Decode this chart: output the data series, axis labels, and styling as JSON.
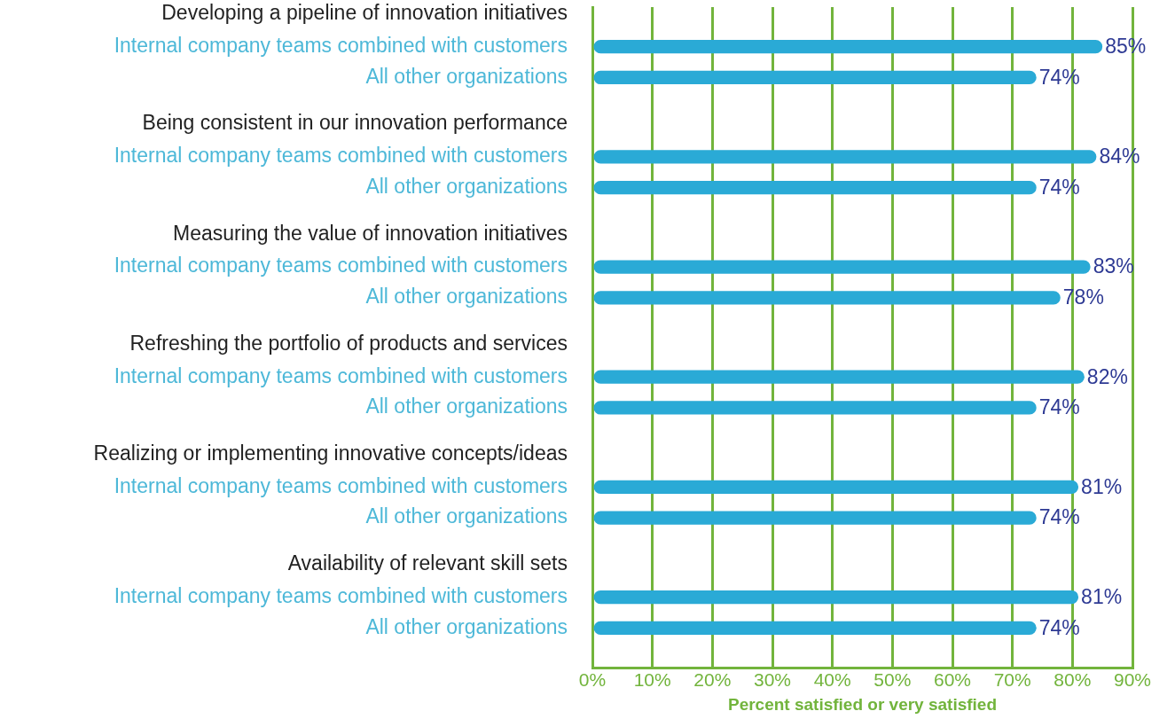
{
  "chart_data": {
    "type": "bar",
    "orientation": "horizontal",
    "xlabel": "Percent satisfied or very satisfied",
    "categories": [
      "Developing a pipeline of innovation initiatives",
      "Being consistent in our innovation performance",
      "Measuring the value of innovation initiatives",
      "Refreshing the portfolio of products and services",
      "Realizing or implementing innovative concepts/ideas",
      "Availability of relevant skill sets"
    ],
    "series": [
      {
        "name": "Internal company teams combined with customers",
        "color": "#2aaad6",
        "values": [
          85,
          84,
          83,
          82,
          81,
          81
        ],
        "value_labels": [
          "85%",
          "84%",
          "83%",
          "82%",
          "81%",
          "81%"
        ]
      },
      {
        "name": "All other organizations",
        "color": "#2aaad6",
        "values": [
          74,
          74,
          78,
          74,
          74,
          74
        ],
        "value_labels": [
          "74%",
          "74%",
          "78%",
          "74%",
          "74%",
          "74%"
        ]
      }
    ],
    "xlim": [
      0,
      90
    ],
    "xticks": [
      {
        "value": 0,
        "label": "0%"
      },
      {
        "value": 10,
        "label": "10%"
      },
      {
        "value": 20,
        "label": "20%"
      },
      {
        "value": 30,
        "label": "30%"
      },
      {
        "value": 40,
        "label": "40%"
      },
      {
        "value": 50,
        "label": "50%"
      },
      {
        "value": 60,
        "label": "60%"
      },
      {
        "value": 70,
        "label": "70%"
      },
      {
        "value": 80,
        "label": "80%"
      },
      {
        "value": 90,
        "label": "90%"
      }
    ],
    "grid": "x"
  }
}
